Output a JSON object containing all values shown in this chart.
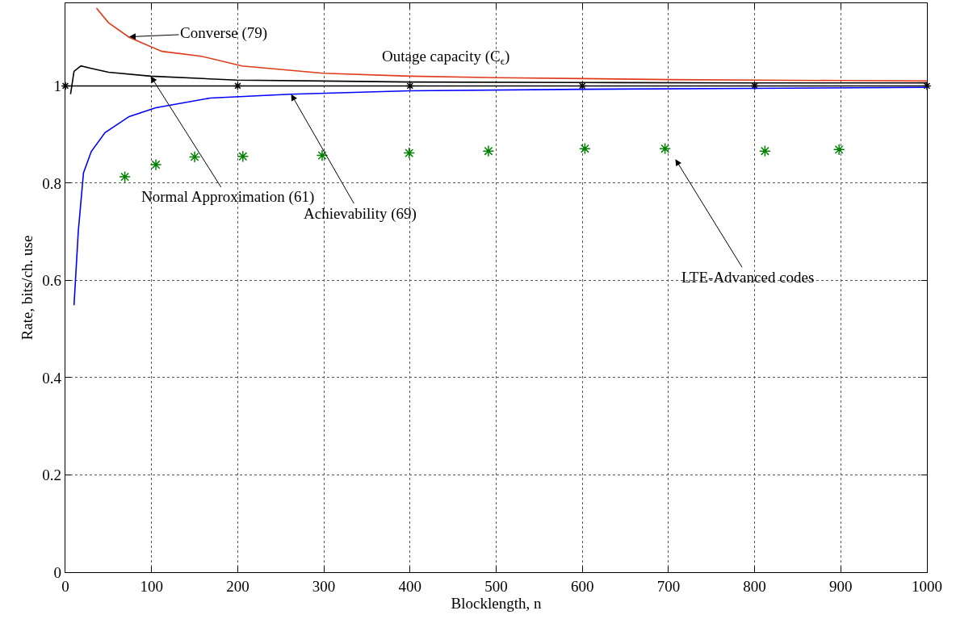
{
  "chart_data": {
    "type": "line",
    "xlabel": "Blocklength, n",
    "ylabel": "Rate, bits/ch. use",
    "xlim": [
      0,
      1000
    ],
    "xticks": [
      0,
      100,
      200,
      300,
      400,
      500,
      600,
      700,
      800,
      900,
      1000
    ],
    "ylim": [
      0,
      1.17
    ],
    "yticks": [
      0,
      0.2,
      0.4,
      0.6,
      0.8,
      1
    ],
    "grid": true,
    "line_style": "solid",
    "series": [
      {
        "marker": "none",
        "color": "#e03a1a",
        "x": [
          36,
          50,
          74,
          112,
          158,
          205,
          299,
          400,
          500,
          600,
          700,
          800,
          900,
          1000
        ],
        "values": [
          1.16,
          1.13,
          1.1,
          1.071,
          1.061,
          1.041,
          1.026,
          1.02,
          1.017,
          1.015,
          1.013,
          1.012,
          1.011,
          1.01
        ]
      },
      {
        "marker": "none",
        "color": "#000000",
        "x": [
          6,
          10,
          18,
          30,
          50,
          99,
          199,
          300,
          400,
          600,
          800,
          1000
        ],
        "values": [
          0.983,
          1.03,
          1.041,
          1.036,
          1.028,
          1.02,
          1.012,
          1.01,
          1.008,
          1.007,
          1.006,
          1.006
        ]
      },
      {
        "marker": "cross",
        "color": "#000000",
        "x": [
          0,
          200,
          400,
          600,
          800,
          1000
        ],
        "values": [
          1,
          1,
          1,
          1,
          1,
          1
        ]
      },
      {
        "marker": "none",
        "color": "#0000ff",
        "x": [
          10,
          15,
          21,
          30,
          46,
          74,
          105,
          168,
          261,
          400,
          600,
          800,
          1000
        ],
        "values": [
          0.549,
          0.702,
          0.821,
          0.865,
          0.904,
          0.937,
          0.955,
          0.975,
          0.983,
          0.99,
          0.993,
          0.995,
          0.997
        ]
      },
      {
        "type": "scatter",
        "marker": "cross",
        "color": "#008000",
        "x": [
          69,
          105,
          150,
          206,
          298,
          399,
          491,
          603,
          696,
          812,
          898
        ],
        "values": [
          0.813,
          0.838,
          0.854,
          0.855,
          0.857,
          0.862,
          0.866,
          0.871,
          0.871,
          0.866,
          0.869
        ]
      }
    ],
    "annotations": [
      "Converse (79)",
      "Outage capacity (C$_{ϵ}$)",
      {
        "text": "Normal Approximation (61)",
        "x": 99,
        "y": 1.02
      },
      {
        "text": "Achievability (69)",
        "x": 262,
        "y": 0.983
      },
      "LTE-Advanced codes"
    ]
  }
}
